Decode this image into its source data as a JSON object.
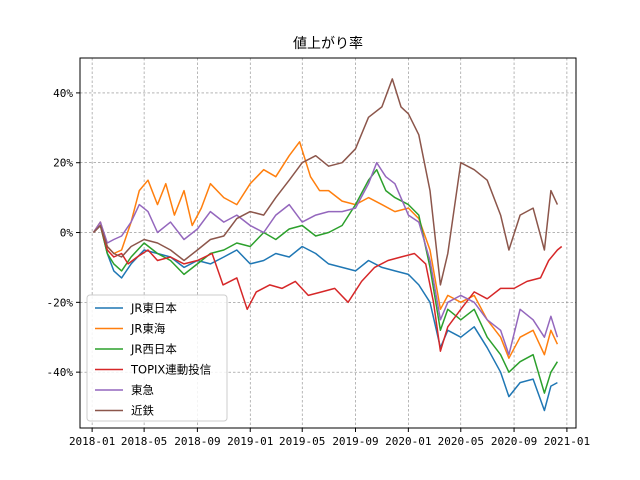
{
  "chart_data": {
    "type": "line",
    "title": "値上がり率",
    "xlabel": "",
    "ylabel": "",
    "x_tick_labels": [
      "2018-01",
      "2018-05",
      "2018-09",
      "2019-01",
      "2019-05",
      "2019-09",
      "2020-01",
      "2020-05",
      "2020-09",
      "2021-01"
    ],
    "y_tick_labels": [
      "-40%",
      "-20%",
      "0%",
      "20%",
      "40%"
    ],
    "y_ticks": [
      -40,
      -20,
      0,
      20,
      40
    ],
    "ylim": [
      -56,
      50
    ],
    "xlim": [
      "2017-12-04",
      "2021-01-22"
    ],
    "grid": true,
    "legend_position": "lower-left",
    "series": [
      {
        "name": "JR東日本",
        "color": "#1f77b4",
        "points": [
          [
            "2018-01-04",
            0
          ],
          [
            "2018-01-20",
            2
          ],
          [
            "2018-02-05",
            -6
          ],
          [
            "2018-02-20",
            -11
          ],
          [
            "2018-03-10",
            -13
          ],
          [
            "2018-04-01",
            -9
          ],
          [
            "2018-05-01",
            -5
          ],
          [
            "2018-06-01",
            -6
          ],
          [
            "2018-07-01",
            -7
          ],
          [
            "2018-08-01",
            -10
          ],
          [
            "2018-09-01",
            -8
          ],
          [
            "2018-10-01",
            -9
          ],
          [
            "2018-11-01",
            -7
          ],
          [
            "2018-12-01",
            -5
          ],
          [
            "2019-01-01",
            -9
          ],
          [
            "2019-02-01",
            -8
          ],
          [
            "2019-03-01",
            -6
          ],
          [
            "2019-04-01",
            -7
          ],
          [
            "2019-05-01",
            -4
          ],
          [
            "2019-06-01",
            -6
          ],
          [
            "2019-07-01",
            -9
          ],
          [
            "2019-08-01",
            -10
          ],
          [
            "2019-09-01",
            -11
          ],
          [
            "2019-10-01",
            -8
          ],
          [
            "2019-11-01",
            -10
          ],
          [
            "2019-12-01",
            -11
          ],
          [
            "2020-01-01",
            -12
          ],
          [
            "2020-01-25",
            -15
          ],
          [
            "2020-02-20",
            -20
          ],
          [
            "2020-03-15",
            -33
          ],
          [
            "2020-04-01",
            -28
          ],
          [
            "2020-05-01",
            -30
          ],
          [
            "2020-06-01",
            -27
          ],
          [
            "2020-07-01",
            -33
          ],
          [
            "2020-08-01",
            -40
          ],
          [
            "2020-08-20",
            -47
          ],
          [
            "2020-09-15",
            -43
          ],
          [
            "2020-10-15",
            -42
          ],
          [
            "2020-11-10",
            -51
          ],
          [
            "2020-11-25",
            -44
          ],
          [
            "2020-12-10",
            -43
          ]
        ]
      },
      {
        "name": "JR東海",
        "color": "#ff7f0e",
        "points": [
          [
            "2018-01-04",
            0
          ],
          [
            "2018-01-20",
            3
          ],
          [
            "2018-02-05",
            -4
          ],
          [
            "2018-02-20",
            -6
          ],
          [
            "2018-03-10",
            -5
          ],
          [
            "2018-04-01",
            3
          ],
          [
            "2018-04-20",
            12
          ],
          [
            "2018-05-10",
            15
          ],
          [
            "2018-06-01",
            8
          ],
          [
            "2018-06-20",
            14
          ],
          [
            "2018-07-10",
            5
          ],
          [
            "2018-08-01",
            12
          ],
          [
            "2018-08-20",
            2
          ],
          [
            "2018-09-10",
            7
          ],
          [
            "2018-10-01",
            14
          ],
          [
            "2018-11-01",
            10
          ],
          [
            "2018-12-01",
            8
          ],
          [
            "2019-01-01",
            14
          ],
          [
            "2019-02-01",
            18
          ],
          [
            "2019-03-01",
            16
          ],
          [
            "2019-04-01",
            22
          ],
          [
            "2019-04-25",
            26
          ],
          [
            "2019-05-20",
            16
          ],
          [
            "2019-06-10",
            12
          ],
          [
            "2019-07-01",
            12
          ],
          [
            "2019-08-01",
            9
          ],
          [
            "2019-09-01",
            8
          ],
          [
            "2019-10-01",
            10
          ],
          [
            "2019-11-01",
            8
          ],
          [
            "2019-12-01",
            6
          ],
          [
            "2020-01-01",
            7
          ],
          [
            "2020-01-25",
            4
          ],
          [
            "2020-02-20",
            -5
          ],
          [
            "2020-03-15",
            -22
          ],
          [
            "2020-04-01",
            -18
          ],
          [
            "2020-05-01",
            -20
          ],
          [
            "2020-06-01",
            -18
          ],
          [
            "2020-07-01",
            -25
          ],
          [
            "2020-08-01",
            -30
          ],
          [
            "2020-08-20",
            -36
          ],
          [
            "2020-09-15",
            -30
          ],
          [
            "2020-10-15",
            -28
          ],
          [
            "2020-11-10",
            -35
          ],
          [
            "2020-11-25",
            -28
          ],
          [
            "2020-12-10",
            -32
          ]
        ]
      },
      {
        "name": "JR西日本",
        "color": "#2ca02c",
        "points": [
          [
            "2018-01-04",
            0
          ],
          [
            "2018-01-20",
            2
          ],
          [
            "2018-02-05",
            -6
          ],
          [
            "2018-02-20",
            -9
          ],
          [
            "2018-03-10",
            -11
          ],
          [
            "2018-04-01",
            -7
          ],
          [
            "2018-05-01",
            -3
          ],
          [
            "2018-06-01",
            -6
          ],
          [
            "2018-07-01",
            -8
          ],
          [
            "2018-08-01",
            -12
          ],
          [
            "2018-09-01",
            -9
          ],
          [
            "2018-10-01",
            -6
          ],
          [
            "2018-11-01",
            -5
          ],
          [
            "2018-12-01",
            -3
          ],
          [
            "2019-01-01",
            -4
          ],
          [
            "2019-02-01",
            0
          ],
          [
            "2019-03-01",
            -2
          ],
          [
            "2019-04-01",
            1
          ],
          [
            "2019-05-01",
            2
          ],
          [
            "2019-06-01",
            -1
          ],
          [
            "2019-07-01",
            0
          ],
          [
            "2019-08-01",
            2
          ],
          [
            "2019-09-01",
            8
          ],
          [
            "2019-10-01",
            15
          ],
          [
            "2019-10-20",
            18
          ],
          [
            "2019-11-10",
            12
          ],
          [
            "2019-12-01",
            10
          ],
          [
            "2020-01-01",
            8
          ],
          [
            "2020-01-25",
            5
          ],
          [
            "2020-02-20",
            -10
          ],
          [
            "2020-03-15",
            -28
          ],
          [
            "2020-04-01",
            -22
          ],
          [
            "2020-05-01",
            -25
          ],
          [
            "2020-06-01",
            -22
          ],
          [
            "2020-07-01",
            -30
          ],
          [
            "2020-08-01",
            -35
          ],
          [
            "2020-08-20",
            -40
          ],
          [
            "2020-09-15",
            -37
          ],
          [
            "2020-10-15",
            -35
          ],
          [
            "2020-11-10",
            -46
          ],
          [
            "2020-11-25",
            -40
          ],
          [
            "2020-12-10",
            -37
          ]
        ]
      },
      {
        "name": "TOPIX連動投信",
        "color": "#d62728",
        "points": [
          [
            "2018-01-04",
            0
          ],
          [
            "2018-01-20",
            2
          ],
          [
            "2018-02-05",
            -5
          ],
          [
            "2018-02-20",
            -7
          ],
          [
            "2018-03-10",
            -6
          ],
          [
            "2018-03-25",
            -9
          ],
          [
            "2018-04-15",
            -7
          ],
          [
            "2018-05-10",
            -5
          ],
          [
            "2018-06-01",
            -8
          ],
          [
            "2018-07-01",
            -7
          ],
          [
            "2018-08-01",
            -9
          ],
          [
            "2018-09-01",
            -8
          ],
          [
            "2018-10-05",
            -6
          ],
          [
            "2018-10-30",
            -15
          ],
          [
            "2018-12-01",
            -13
          ],
          [
            "2018-12-25",
            -22
          ],
          [
            "2019-01-15",
            -17
          ],
          [
            "2019-02-15",
            -15
          ],
          [
            "2019-03-15",
            -16
          ],
          [
            "2019-04-15",
            -14
          ],
          [
            "2019-05-15",
            -18
          ],
          [
            "2019-06-15",
            -17
          ],
          [
            "2019-07-15",
            -16
          ],
          [
            "2019-08-15",
            -20
          ],
          [
            "2019-09-15",
            -14
          ],
          [
            "2019-10-15",
            -10
          ],
          [
            "2019-11-15",
            -8
          ],
          [
            "2019-12-15",
            -7
          ],
          [
            "2020-01-15",
            -6
          ],
          [
            "2020-02-10",
            -9
          ],
          [
            "2020-02-28",
            -20
          ],
          [
            "2020-03-15",
            -34
          ],
          [
            "2020-04-01",
            -27
          ],
          [
            "2020-05-01",
            -22
          ],
          [
            "2020-06-01",
            -17
          ],
          [
            "2020-07-01",
            -19
          ],
          [
            "2020-08-01",
            -16
          ],
          [
            "2020-09-01",
            -16
          ],
          [
            "2020-10-01",
            -14
          ],
          [
            "2020-11-01",
            -13
          ],
          [
            "2020-11-20",
            -8
          ],
          [
            "2020-12-10",
            -5
          ],
          [
            "2020-12-20",
            -4
          ]
        ]
      },
      {
        "name": "東急",
        "color": "#9467bd",
        "points": [
          [
            "2018-01-04",
            0
          ],
          [
            "2018-01-20",
            3
          ],
          [
            "2018-02-05",
            -3
          ],
          [
            "2018-02-20",
            -2
          ],
          [
            "2018-03-10",
            -1
          ],
          [
            "2018-04-01",
            3
          ],
          [
            "2018-04-20",
            8
          ],
          [
            "2018-05-10",
            6
          ],
          [
            "2018-06-01",
            0
          ],
          [
            "2018-07-01",
            3
          ],
          [
            "2018-08-01",
            -2
          ],
          [
            "2018-09-01",
            1
          ],
          [
            "2018-10-01",
            6
          ],
          [
            "2018-11-01",
            3
          ],
          [
            "2018-12-01",
            5
          ],
          [
            "2019-01-01",
            2
          ],
          [
            "2019-02-01",
            0
          ],
          [
            "2019-03-01",
            5
          ],
          [
            "2019-04-01",
            8
          ],
          [
            "2019-05-01",
            3
          ],
          [
            "2019-06-01",
            5
          ],
          [
            "2019-07-01",
            6
          ],
          [
            "2019-08-01",
            6
          ],
          [
            "2019-09-01",
            7
          ],
          [
            "2019-10-01",
            14
          ],
          [
            "2019-10-20",
            20
          ],
          [
            "2019-11-10",
            16
          ],
          [
            "2019-12-01",
            14
          ],
          [
            "2020-01-01",
            5
          ],
          [
            "2020-01-25",
            3
          ],
          [
            "2020-02-20",
            -8
          ],
          [
            "2020-03-15",
            -25
          ],
          [
            "2020-04-01",
            -20
          ],
          [
            "2020-05-01",
            -18
          ],
          [
            "2020-06-01",
            -20
          ],
          [
            "2020-07-01",
            -25
          ],
          [
            "2020-08-01",
            -28
          ],
          [
            "2020-08-20",
            -35
          ],
          [
            "2020-09-15",
            -22
          ],
          [
            "2020-10-15",
            -25
          ],
          [
            "2020-11-10",
            -30
          ],
          [
            "2020-11-25",
            -24
          ],
          [
            "2020-12-10",
            -30
          ]
        ]
      },
      {
        "name": "近鉄",
        "color": "#8c564b",
        "points": [
          [
            "2018-01-04",
            0
          ],
          [
            "2018-01-20",
            2
          ],
          [
            "2018-02-05",
            -4
          ],
          [
            "2018-02-20",
            -6
          ],
          [
            "2018-03-10",
            -7
          ],
          [
            "2018-04-01",
            -4
          ],
          [
            "2018-05-01",
            -2
          ],
          [
            "2018-06-01",
            -3
          ],
          [
            "2018-07-01",
            -5
          ],
          [
            "2018-08-01",
            -8
          ],
          [
            "2018-09-01",
            -5
          ],
          [
            "2018-10-01",
            -2
          ],
          [
            "2018-11-01",
            -1
          ],
          [
            "2018-12-01",
            4
          ],
          [
            "2019-01-01",
            6
          ],
          [
            "2019-02-01",
            5
          ],
          [
            "2019-03-01",
            10
          ],
          [
            "2019-04-01",
            15
          ],
          [
            "2019-05-01",
            20
          ],
          [
            "2019-06-01",
            22
          ],
          [
            "2019-07-01",
            19
          ],
          [
            "2019-08-01",
            20
          ],
          [
            "2019-09-01",
            24
          ],
          [
            "2019-10-01",
            33
          ],
          [
            "2019-11-01",
            36
          ],
          [
            "2019-11-25",
            44
          ],
          [
            "2019-12-15",
            36
          ],
          [
            "2020-01-01",
            34
          ],
          [
            "2020-01-25",
            28
          ],
          [
            "2020-02-20",
            12
          ],
          [
            "2020-03-15",
            -15
          ],
          [
            "2020-04-01",
            -6
          ],
          [
            "2020-05-01",
            20
          ],
          [
            "2020-06-01",
            18
          ],
          [
            "2020-07-01",
            15
          ],
          [
            "2020-08-01",
            5
          ],
          [
            "2020-08-20",
            -5
          ],
          [
            "2020-09-15",
            5
          ],
          [
            "2020-10-15",
            7
          ],
          [
            "2020-11-10",
            -5
          ],
          [
            "2020-11-25",
            12
          ],
          [
            "2020-12-10",
            8
          ]
        ]
      }
    ]
  }
}
